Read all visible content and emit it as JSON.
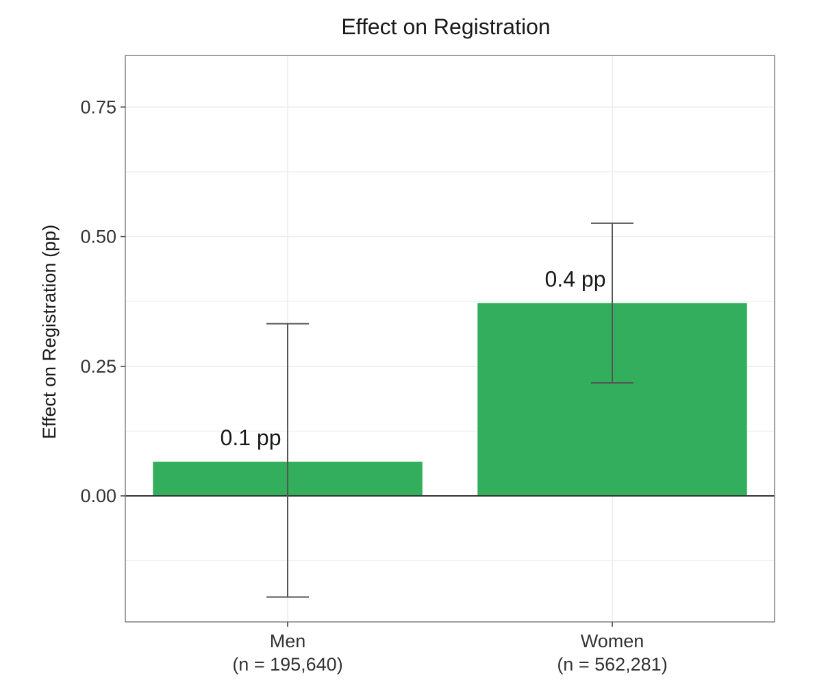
{
  "chart_data": {
    "type": "bar",
    "title": "Effect on Registration",
    "xlabel": "",
    "ylabel": "Effect on Registration (pp)",
    "categories": [
      "Men",
      "Women"
    ],
    "category_sublabels": [
      "(n = 195,640)",
      "(n = 562,281)"
    ],
    "values": [
      0.066,
      0.372
    ],
    "error_low": [
      -0.195,
      0.218
    ],
    "error_high": [
      0.332,
      0.526
    ],
    "data_labels": [
      "0.1 pp",
      "0.4 pp"
    ],
    "yticks": [
      0.0,
      0.25,
      0.5,
      0.75
    ],
    "ytick_labels": [
      "0.00",
      "0.25",
      "0.50",
      "0.75"
    ],
    "ylim": [
      -0.245,
      0.85
    ],
    "grid": true,
    "legend": "none",
    "bar_color": "#33ae5c",
    "errorbar_color": "#555555"
  }
}
